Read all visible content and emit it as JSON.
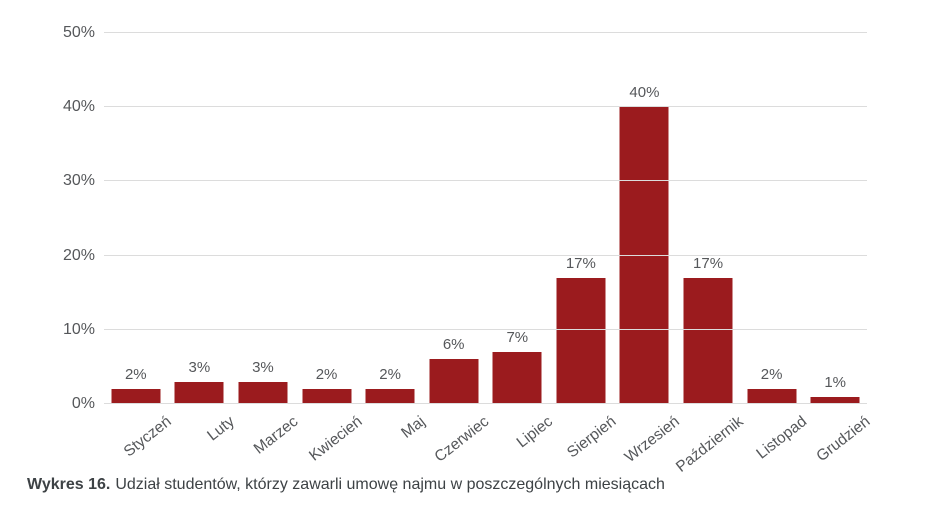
{
  "chart_data": {
    "type": "bar",
    "categories": [
      "Styczeń",
      "Luty",
      "Marzec",
      "Kwiecień",
      "Maj",
      "Czerwiec",
      "Lipiec",
      "Sierpień",
      "Wrzesień",
      "Październik",
      "Listopad",
      "Grudzień"
    ],
    "values": [
      2,
      3,
      3,
      2,
      2,
      6,
      7,
      17,
      40,
      17,
      2,
      1
    ],
    "value_labels": [
      "2%",
      "3%",
      "3%",
      "2%",
      "2%",
      "6%",
      "7%",
      "17%",
      "40%",
      "17%",
      "2%",
      "1%"
    ],
    "title": "",
    "xlabel": "",
    "ylabel": "",
    "ylim": [
      0,
      50
    ],
    "yticks": [
      {
        "value": 0,
        "label": "0%"
      },
      {
        "value": 10,
        "label": "10%"
      },
      {
        "value": 20,
        "label": "20%"
      },
      {
        "value": 30,
        "label": "30%"
      },
      {
        "value": 40,
        "label": "40%"
      },
      {
        "value": 50,
        "label": "50%"
      }
    ],
    "grid": true,
    "legend": false,
    "bar_color": "#9b1b1e"
  },
  "caption": {
    "prefix": "Wykres 16.",
    "text": "Udział studentów, którzy zawarli umowę najmu w poszczególnych miesiącach"
  },
  "colors": {
    "bar": "#9b1b1e",
    "gridline": "#dcdcdc",
    "axis_label": "#55575a",
    "caption": "#3d4245"
  }
}
